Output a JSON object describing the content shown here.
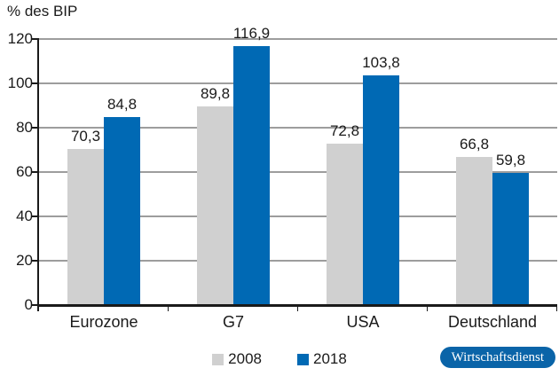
{
  "chart_data": {
    "type": "bar",
    "title": "% des BIP",
    "ylabel": "% des BIP",
    "xlabel": "",
    "categories": [
      "Eurozone",
      "G7",
      "USA",
      "Deutschland"
    ],
    "series": [
      {
        "name": "2008",
        "color": "#d0d0d0",
        "values": [
          70.3,
          89.8,
          72.8,
          66.8
        ],
        "labels": [
          "70,3",
          "89,8",
          "72,8",
          "66,8"
        ]
      },
      {
        "name": "2018",
        "color": "#0069b4",
        "values": [
          84.8,
          116.9,
          103.8,
          59.8
        ],
        "labels": [
          "84,8",
          "116,9",
          "103,8",
          "59,8"
        ]
      }
    ],
    "ylim": [
      0,
      120
    ],
    "yticks": [
      0,
      20,
      40,
      60,
      80,
      100,
      120
    ],
    "ytick_labels": [
      "0",
      "20",
      "40",
      "60",
      "80",
      "100",
      "120"
    ],
    "grid": "horizontal",
    "legend_position": "bottom"
  },
  "branding": {
    "badge_label": "Wirtschaftsdienst",
    "badge_color": "#0a64a8"
  },
  "colors": {
    "axis": "#1a1a1a",
    "gridline": "#9d9d9d",
    "text": "#1a1a1a",
    "background": "#ffffff"
  }
}
